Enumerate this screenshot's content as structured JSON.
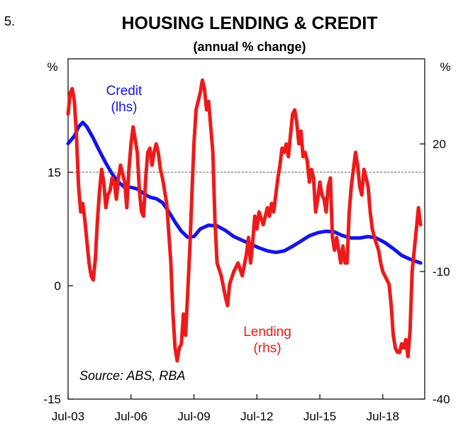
{
  "chart_data": {
    "type": "line",
    "figure_number": "5.",
    "title": "HOUSING LENDING & CREDIT",
    "subtitle": "(annual % change)",
    "source": "Source: ABS, RBA",
    "left_axis": {
      "unit": "%",
      "ylim": [
        -15,
        30
      ],
      "ticks": [
        -15,
        0,
        15
      ]
    },
    "right_axis": {
      "unit": "%",
      "ylim": [
        -40,
        40
      ],
      "ticks": [
        -40,
        -10,
        20
      ]
    },
    "x_axis": {
      "range": [
        2003.5,
        2020.5
      ],
      "ticks": [
        "Jul-03",
        "Jul-06",
        "Jul-09",
        "Jul-12",
        "Jul-15",
        "Jul-18"
      ],
      "tick_values": [
        2003.5,
        2006.5,
        2009.5,
        2012.5,
        2015.5,
        2018.5
      ]
    },
    "reference_line": {
      "axis": "left",
      "value": 15,
      "style": "dashed"
    },
    "series": [
      {
        "name": "Credit",
        "axis_label": "Credit\n(lhs)",
        "label_lines": [
          "Credit",
          "(lhs)"
        ],
        "axis": "left",
        "color": "#1414e6",
        "points": [
          [
            2003.5,
            18.8
          ],
          [
            2003.8,
            19.8
          ],
          [
            2004.0,
            21.0
          ],
          [
            2004.2,
            21.6
          ],
          [
            2004.4,
            21.0
          ],
          [
            2004.7,
            19.5
          ],
          [
            2005.0,
            17.8
          ],
          [
            2005.3,
            16.2
          ],
          [
            2005.6,
            14.8
          ],
          [
            2005.9,
            13.7
          ],
          [
            2006.2,
            13.0
          ],
          [
            2006.5,
            13.0
          ],
          [
            2006.8,
            12.8
          ],
          [
            2007.1,
            12.2
          ],
          [
            2007.4,
            11.7
          ],
          [
            2007.7,
            11.5
          ],
          [
            2008.0,
            11.0
          ],
          [
            2008.3,
            9.8
          ],
          [
            2008.6,
            8.4
          ],
          [
            2008.9,
            7.2
          ],
          [
            2009.2,
            6.4
          ],
          [
            2009.5,
            6.5
          ],
          [
            2009.8,
            7.5
          ],
          [
            2010.2,
            8.0
          ],
          [
            2010.6,
            7.9
          ],
          [
            2011.0,
            7.3
          ],
          [
            2011.4,
            6.5
          ],
          [
            2011.8,
            6.0
          ],
          [
            2012.2,
            5.5
          ],
          [
            2012.6,
            5.0
          ],
          [
            2013.0,
            4.6
          ],
          [
            2013.4,
            4.4
          ],
          [
            2013.8,
            4.6
          ],
          [
            2014.2,
            5.2
          ],
          [
            2014.6,
            5.9
          ],
          [
            2015.0,
            6.6
          ],
          [
            2015.4,
            7.0
          ],
          [
            2015.8,
            7.2
          ],
          [
            2016.2,
            7.1
          ],
          [
            2016.6,
            6.6
          ],
          [
            2017.0,
            6.3
          ],
          [
            2017.4,
            6.3
          ],
          [
            2017.8,
            6.5
          ],
          [
            2018.2,
            6.3
          ],
          [
            2018.6,
            5.7
          ],
          [
            2019.0,
            4.9
          ],
          [
            2019.4,
            4.0
          ],
          [
            2019.8,
            3.5
          ],
          [
            2020.1,
            3.2
          ],
          [
            2020.3,
            3.0
          ]
        ]
      },
      {
        "name": "Lending",
        "axis_label": "Lending\n(rhs)",
        "label_lines": [
          "Lending",
          "(rhs)"
        ],
        "axis": "right",
        "color": "#ee1a1a",
        "points": [
          [
            2003.5,
            27
          ],
          [
            2003.6,
            32
          ],
          [
            2003.7,
            33
          ],
          [
            2003.8,
            30
          ],
          [
            2003.9,
            22
          ],
          [
            2004.0,
            10
          ],
          [
            2004.1,
            4
          ],
          [
            2004.2,
            6
          ],
          [
            2004.3,
            2
          ],
          [
            2004.4,
            -3
          ],
          [
            2004.5,
            -8
          ],
          [
            2004.6,
            -11
          ],
          [
            2004.7,
            -12
          ],
          [
            2004.8,
            -7
          ],
          [
            2004.9,
            2
          ],
          [
            2005.0,
            9
          ],
          [
            2005.1,
            14
          ],
          [
            2005.2,
            11
          ],
          [
            2005.3,
            5
          ],
          [
            2005.4,
            8
          ],
          [
            2005.5,
            9
          ],
          [
            2005.6,
            12
          ],
          [
            2005.7,
            11
          ],
          [
            2005.8,
            7
          ],
          [
            2005.9,
            12
          ],
          [
            2006.0,
            15
          ],
          [
            2006.1,
            13
          ],
          [
            2006.2,
            11
          ],
          [
            2006.3,
            5
          ],
          [
            2006.4,
            14
          ],
          [
            2006.5,
            20
          ],
          [
            2006.6,
            24
          ],
          [
            2006.7,
            21
          ],
          [
            2006.8,
            18
          ],
          [
            2006.9,
            9
          ],
          [
            2007.0,
            4
          ],
          [
            2007.1,
            3
          ],
          [
            2007.2,
            12
          ],
          [
            2007.3,
            18
          ],
          [
            2007.4,
            19
          ],
          [
            2007.5,
            15
          ],
          [
            2007.6,
            18
          ],
          [
            2007.7,
            20
          ],
          [
            2007.8,
            18
          ],
          [
            2007.9,
            14
          ],
          [
            2008.0,
            12
          ],
          [
            2008.2,
            6
          ],
          [
            2008.4,
            -8
          ],
          [
            2008.5,
            -20
          ],
          [
            2008.6,
            -28
          ],
          [
            2008.7,
            -31
          ],
          [
            2008.8,
            -28
          ],
          [
            2008.9,
            -27
          ],
          [
            2009.0,
            -20
          ],
          [
            2009.1,
            -25
          ],
          [
            2009.2,
            -15
          ],
          [
            2009.3,
            -5
          ],
          [
            2009.4,
            8
          ],
          [
            2009.5,
            20
          ],
          [
            2009.6,
            28
          ],
          [
            2009.7,
            30
          ],
          [
            2009.8,
            32
          ],
          [
            2009.9,
            35
          ],
          [
            2010.0,
            33
          ],
          [
            2010.1,
            28
          ],
          [
            2010.2,
            30
          ],
          [
            2010.4,
            18
          ],
          [
            2010.5,
            2
          ],
          [
            2010.6,
            -8
          ],
          [
            2010.8,
            -11
          ],
          [
            2011.0,
            -16
          ],
          [
            2011.1,
            -18
          ],
          [
            2011.2,
            -13
          ],
          [
            2011.4,
            -10
          ],
          [
            2011.6,
            -8
          ],
          [
            2011.8,
            -11
          ],
          [
            2012.0,
            -6
          ],
          [
            2012.1,
            -2
          ],
          [
            2012.2,
            -8
          ],
          [
            2012.3,
            -3
          ],
          [
            2012.4,
            3
          ],
          [
            2012.5,
            0
          ],
          [
            2012.6,
            4
          ],
          [
            2012.8,
            1
          ],
          [
            2013.0,
            5
          ],
          [
            2013.1,
            3
          ],
          [
            2013.2,
            6
          ],
          [
            2013.3,
            4
          ],
          [
            2013.4,
            8
          ],
          [
            2013.5,
            12
          ],
          [
            2013.6,
            15
          ],
          [
            2013.7,
            19
          ],
          [
            2013.8,
            18
          ],
          [
            2013.9,
            20
          ],
          [
            2014.0,
            17
          ],
          [
            2014.1,
            22
          ],
          [
            2014.2,
            27
          ],
          [
            2014.3,
            28
          ],
          [
            2014.4,
            25
          ],
          [
            2014.5,
            20
          ],
          [
            2014.6,
            23
          ],
          [
            2014.7,
            17
          ],
          [
            2014.8,
            18
          ],
          [
            2014.9,
            16
          ],
          [
            2015.0,
            11
          ],
          [
            2015.1,
            14
          ],
          [
            2015.2,
            12
          ],
          [
            2015.3,
            4
          ],
          [
            2015.4,
            7
          ],
          [
            2015.5,
            11
          ],
          [
            2015.6,
            8
          ],
          [
            2015.7,
            7
          ],
          [
            2015.8,
            4
          ],
          [
            2015.9,
            10
          ],
          [
            2016.0,
            12
          ],
          [
            2016.1,
            -2
          ],
          [
            2016.2,
            -5
          ],
          [
            2016.3,
            -2
          ],
          [
            2016.4,
            -5
          ],
          [
            2016.5,
            -8
          ],
          [
            2016.6,
            -4
          ],
          [
            2016.7,
            -8
          ],
          [
            2016.8,
            -8
          ],
          [
            2016.9,
            4
          ],
          [
            2017.0,
            10
          ],
          [
            2017.1,
            14
          ],
          [
            2017.2,
            18
          ],
          [
            2017.3,
            15
          ],
          [
            2017.4,
            10
          ],
          [
            2017.5,
            8
          ],
          [
            2017.6,
            14
          ],
          [
            2017.7,
            12
          ],
          [
            2017.8,
            10
          ],
          [
            2017.9,
            4
          ],
          [
            2018.0,
            0
          ],
          [
            2018.1,
            -2
          ],
          [
            2018.3,
            -5
          ],
          [
            2018.4,
            -8
          ],
          [
            2018.5,
            -10
          ],
          [
            2018.7,
            -12
          ],
          [
            2018.8,
            -13
          ],
          [
            2018.9,
            -18
          ],
          [
            2019.0,
            -25
          ],
          [
            2019.1,
            -28
          ],
          [
            2019.2,
            -29
          ],
          [
            2019.3,
            -29
          ],
          [
            2019.4,
            -27
          ],
          [
            2019.5,
            -28
          ],
          [
            2019.6,
            -26
          ],
          [
            2019.7,
            -30
          ],
          [
            2019.8,
            -24
          ],
          [
            2019.9,
            -10
          ],
          [
            2020.0,
            -5
          ],
          [
            2020.1,
            0
          ],
          [
            2020.2,
            5
          ],
          [
            2020.3,
            1
          ]
        ]
      }
    ]
  }
}
